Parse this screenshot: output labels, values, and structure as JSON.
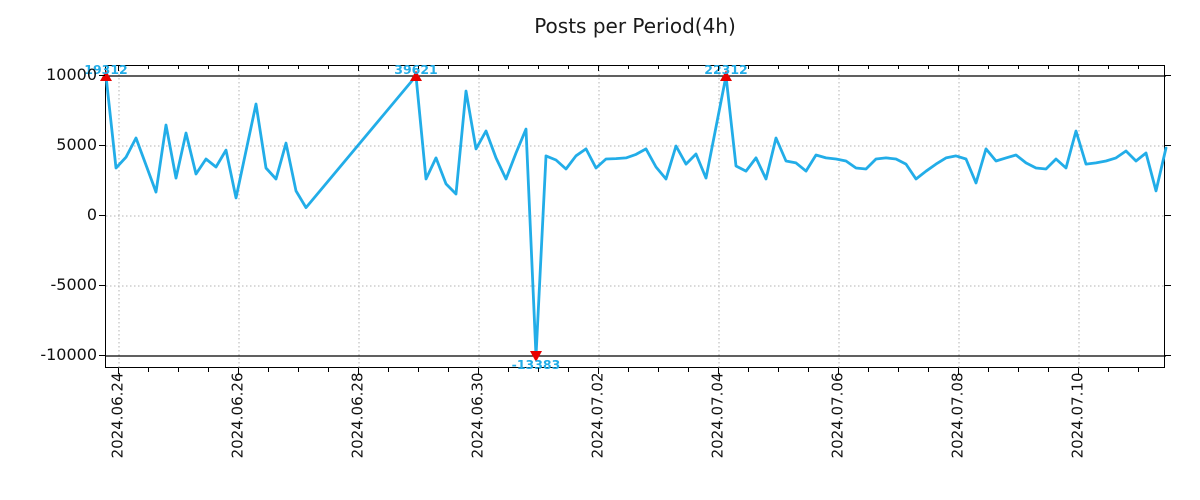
{
  "chart_data": {
    "type": "line",
    "title": "Posts per Period(4h)",
    "x_tick_labels": [
      "2024.06.24",
      "2024.06.26",
      "2024.06.28",
      "2024.06.30",
      "2024.07.02",
      "2024.07.04",
      "2024.07.06",
      "2024.07.08",
      "2024.07.10"
    ],
    "y_ticks": [
      10000,
      5000,
      0,
      -5000,
      -10000
    ],
    "ylim": [
      -10000,
      10000
    ],
    "y_solid_lines": [
      10000,
      -10000
    ],
    "y_dotted_gridlines": [
      5000,
      0,
      -5000
    ],
    "grid": true,
    "x_unit": "4h period index from series start; missing indices are a data gap drawn as a straight segment; plotted values are clipped to ylim",
    "series": [
      {
        "name": "posts-per-4h",
        "points": [
          [
            0,
            19312
          ],
          [
            1,
            3430
          ],
          [
            2,
            4200
          ],
          [
            3,
            5570
          ],
          [
            4,
            3640
          ],
          [
            5,
            1710
          ],
          [
            6,
            6500
          ],
          [
            7,
            2710
          ],
          [
            8,
            5930
          ],
          [
            9,
            3000
          ],
          [
            10,
            4070
          ],
          [
            11,
            3500
          ],
          [
            12,
            4710
          ],
          [
            13,
            1290
          ],
          [
            15,
            8000
          ],
          [
            16,
            3430
          ],
          [
            17,
            2640
          ],
          [
            18,
            5210
          ],
          [
            19,
            1790
          ],
          [
            20,
            600
          ],
          [
            31,
            39621
          ],
          [
            32,
            2640
          ],
          [
            33,
            4150
          ],
          [
            34,
            2290
          ],
          [
            35,
            1570
          ],
          [
            36,
            8930
          ],
          [
            37,
            4790
          ],
          [
            38,
            6070
          ],
          [
            39,
            4150
          ],
          [
            40,
            2640
          ],
          [
            41,
            4500
          ],
          [
            42,
            6210
          ],
          [
            43,
            -13383
          ],
          [
            44,
            4290
          ],
          [
            45,
            4000
          ],
          [
            46,
            3360
          ],
          [
            47,
            4300
          ],
          [
            48,
            4790
          ],
          [
            49,
            3430
          ],
          [
            50,
            4070
          ],
          [
            51,
            4100
          ],
          [
            52,
            4150
          ],
          [
            53,
            4400
          ],
          [
            54,
            4790
          ],
          [
            55,
            3500
          ],
          [
            56,
            2640
          ],
          [
            57,
            5000
          ],
          [
            58,
            3710
          ],
          [
            59,
            4430
          ],
          [
            60,
            2710
          ],
          [
            62,
            22312
          ],
          [
            63,
            3570
          ],
          [
            64,
            3210
          ],
          [
            65,
            4150
          ],
          [
            66,
            2640
          ],
          [
            67,
            5570
          ],
          [
            68,
            3930
          ],
          [
            69,
            3790
          ],
          [
            70,
            3210
          ],
          [
            71,
            4360
          ],
          [
            72,
            4150
          ],
          [
            73,
            4070
          ],
          [
            74,
            3930
          ],
          [
            75,
            3430
          ],
          [
            76,
            3360
          ],
          [
            77,
            4070
          ],
          [
            78,
            4150
          ],
          [
            79,
            4070
          ],
          [
            80,
            3710
          ],
          [
            81,
            2640
          ],
          [
            82,
            3200
          ],
          [
            83,
            3710
          ],
          [
            84,
            4150
          ],
          [
            85,
            4290
          ],
          [
            86,
            4070
          ],
          [
            87,
            2360
          ],
          [
            88,
            4790
          ],
          [
            89,
            3930
          ],
          [
            90,
            4150
          ],
          [
            91,
            4360
          ],
          [
            92,
            3790
          ],
          [
            93,
            3430
          ],
          [
            94,
            3360
          ],
          [
            95,
            4070
          ],
          [
            96,
            3430
          ],
          [
            97,
            6070
          ],
          [
            98,
            3710
          ],
          [
            99,
            3790
          ],
          [
            100,
            3930
          ],
          [
            101,
            4150
          ],
          [
            102,
            4640
          ],
          [
            103,
            3930
          ],
          [
            104,
            4500
          ],
          [
            105,
            1790
          ],
          [
            106,
            4860
          ]
        ]
      }
    ],
    "annotations": [
      {
        "period_index": 0,
        "label": "19312",
        "marker": "triangle-up"
      },
      {
        "period_index": 31,
        "label": "39621",
        "marker": "triangle-up"
      },
      {
        "period_index": 62,
        "label": "22312",
        "marker": "triangle-up"
      },
      {
        "period_index": 43,
        "label": "-13383",
        "marker": "triangle-down"
      }
    ],
    "colors": {
      "line": "#22ade8",
      "marker": "#e80000",
      "annotation_text": "#22ade8",
      "grid": "#b3b3b3",
      "axis": "#000000",
      "text": "#1a1a1a",
      "background": "#ffffff"
    }
  }
}
